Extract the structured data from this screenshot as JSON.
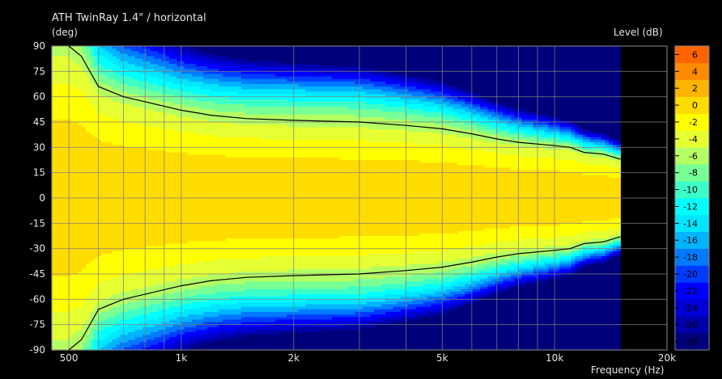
{
  "chart_data": {
    "type": "heatmap",
    "title": "ATH TwinRay 1.4\" / horizontal",
    "ylabel": "(deg)",
    "xlabel": "Frequency  (Hz)",
    "colorbar_label": "Level  (dB)",
    "x_scale": "log",
    "xlim": [
      450,
      20000
    ],
    "ylim": [
      -90,
      90
    ],
    "x_data_max": 15000,
    "x_ticks": [
      {
        "value": 500,
        "label": "500"
      },
      {
        "value": 1000,
        "label": "1k"
      },
      {
        "value": 2000,
        "label": "2k"
      },
      {
        "value": 5000,
        "label": "5k"
      },
      {
        "value": 10000,
        "label": "10k"
      },
      {
        "value": 20000,
        "label": "20k"
      }
    ],
    "y_ticks": [
      90,
      75,
      60,
      45,
      30,
      15,
      0,
      -15,
      -30,
      -45,
      -60,
      -75,
      -90
    ],
    "x_grid_minor": [
      600,
      700,
      800,
      900,
      3000,
      4000,
      6000,
      7000,
      8000,
      9000
    ],
    "color_range": [
      -29,
      7
    ],
    "colorbar_ticks": [
      6,
      4,
      2,
      0,
      -2,
      -4,
      -6,
      -8,
      -10,
      -12,
      -14,
      -16,
      -18,
      -20,
      -22,
      -24,
      -26,
      -28
    ],
    "colors": [
      "#00007a",
      "#0000a8",
      "#0000d6",
      "#0000ff",
      "#003cff",
      "#007aff",
      "#00b4ff",
      "#00e6ff",
      "#00ffff",
      "#3cffc8",
      "#78ff96",
      "#b4ff64",
      "#e6ff32",
      "#ffff00",
      "#ffdc00",
      "#ffb400",
      "#ff8c00",
      "#ff6400",
      "#ff3c00",
      "#ff0000",
      "#dc0000",
      "#b40000",
      "#960000"
    ],
    "contour_level": -6,
    "contour_6db": [
      {
        "freq": 500,
        "angle": 90
      },
      {
        "freq": 540,
        "angle": 84
      },
      {
        "freq": 600,
        "angle": 66
      },
      {
        "freq": 700,
        "angle": 60
      },
      {
        "freq": 800,
        "angle": 57
      },
      {
        "freq": 1000,
        "angle": 52
      },
      {
        "freq": 1200,
        "angle": 49
      },
      {
        "freq": 1500,
        "angle": 47
      },
      {
        "freq": 2000,
        "angle": 46
      },
      {
        "freq": 3000,
        "angle": 45
      },
      {
        "freq": 4000,
        "angle": 43
      },
      {
        "freq": 5000,
        "angle": 41
      },
      {
        "freq": 6000,
        "angle": 38
      },
      {
        "freq": 7000,
        "angle": 35
      },
      {
        "freq": 8000,
        "angle": 33
      },
      {
        "freq": 10000,
        "angle": 31
      },
      {
        "freq": 11000,
        "angle": 30
      },
      {
        "freq": 12000,
        "angle": 27
      },
      {
        "freq": 13500,
        "angle": 26
      },
      {
        "freq": 15000,
        "angle": 23
      }
    ],
    "rolloff_per_angle": [
      {
        "freq": 500,
        "p": 1.15,
        "k": 22
      },
      {
        "freq": 600,
        "p": 1.05,
        "k": 26
      },
      {
        "freq": 700,
        "p": 1.08,
        "k": 28
      },
      {
        "freq": 1000,
        "p": 1.18,
        "k": 30
      },
      {
        "freq": 1500,
        "p": 1.28,
        "k": 31
      },
      {
        "freq": 2000,
        "p": 1.35,
        "k": 32
      },
      {
        "freq": 3000,
        "p": 1.4,
        "k": 33
      },
      {
        "freq": 5000,
        "p": 1.3,
        "k": 35
      },
      {
        "freq": 8000,
        "p": 1.2,
        "k": 39
      },
      {
        "freq": 10000,
        "p": 1.12,
        "k": 42
      },
      {
        "freq": 15000,
        "p": 1.0,
        "k": 46
      }
    ]
  }
}
